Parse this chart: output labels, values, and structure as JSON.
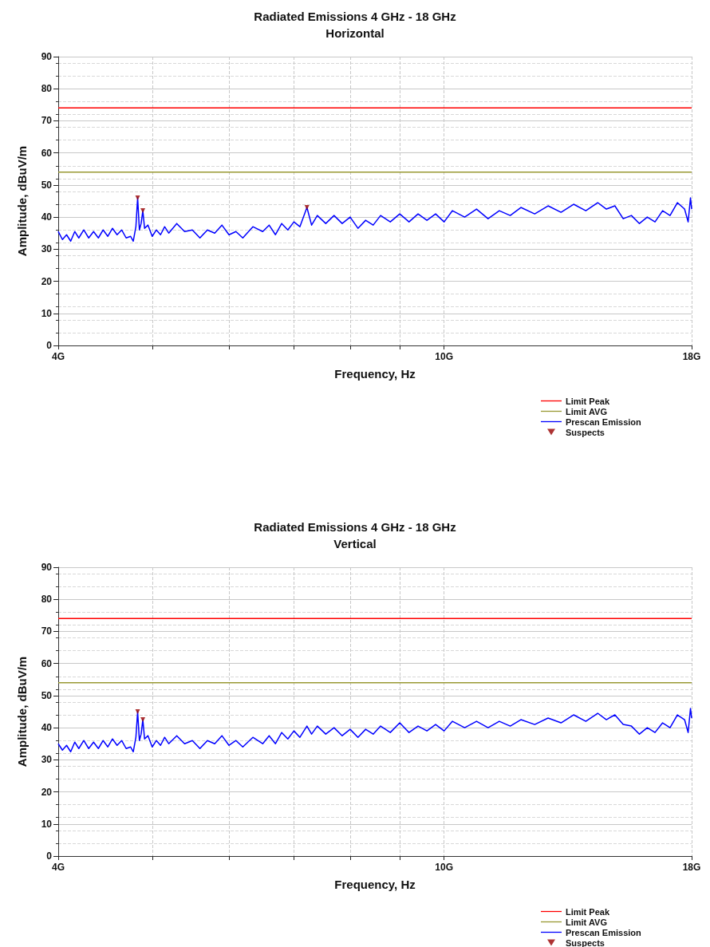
{
  "chart_data": [
    {
      "type": "line",
      "title": "Radiated Emissions 4 GHz - 18 GHz",
      "subtitle": "Horizontal",
      "xlabel": "Frequency, Hz",
      "ylabel": "Amplitude, dBuV/m",
      "log": "x",
      "xlim": [
        4,
        18
      ],
      "xticks": [
        {
          "value": 4,
          "label": "4G"
        },
        {
          "value": 5,
          "label": null
        },
        {
          "value": 6,
          "label": null
        },
        {
          "value": 7,
          "label": null
        },
        {
          "value": 8,
          "label": null
        },
        {
          "value": 9,
          "label": null
        },
        {
          "value": 10,
          "label": "10G"
        },
        {
          "value": 18,
          "label": "18G"
        }
      ],
      "ylim": [
        0,
        90
      ],
      "yticks": [
        0,
        10,
        20,
        30,
        40,
        50,
        60,
        70,
        80,
        90
      ],
      "grid": true,
      "legend": "bottom right",
      "series": [
        {
          "name": "Limit Peak",
          "color": "#ff0000",
          "x": [
            4,
            18
          ],
          "values": [
            74,
            74
          ]
        },
        {
          "name": "Limit AVG",
          "color": "#999933",
          "x": [
            4,
            18
          ],
          "values": [
            54,
            54
          ]
        },
        {
          "name": "Prescan Emission",
          "color": "#0000ff",
          "x": [
            4.0,
            4.04,
            4.08,
            4.12,
            4.16,
            4.2,
            4.25,
            4.3,
            4.35,
            4.4,
            4.45,
            4.5,
            4.55,
            4.6,
            4.65,
            4.7,
            4.75,
            4.78,
            4.81,
            4.83,
            4.85,
            4.87,
            4.89,
            4.91,
            4.95,
            5.0,
            5.05,
            5.1,
            5.15,
            5.2,
            5.3,
            5.4,
            5.5,
            5.6,
            5.7,
            5.8,
            5.9,
            6.0,
            6.1,
            6.2,
            6.35,
            6.5,
            6.6,
            6.7,
            6.8,
            6.9,
            7.0,
            7.1,
            7.22,
            7.3,
            7.4,
            7.55,
            7.7,
            7.85,
            8.0,
            8.15,
            8.3,
            8.45,
            8.6,
            8.8,
            9.0,
            9.2,
            9.4,
            9.6,
            9.8,
            10.0,
            10.2,
            10.5,
            10.8,
            11.1,
            11.4,
            11.7,
            12.0,
            12.4,
            12.8,
            13.2,
            13.6,
            14.0,
            14.4,
            14.7,
            15.0,
            15.3,
            15.6,
            15.9,
            16.2,
            16.5,
            16.8,
            17.1,
            17.4,
            17.7,
            17.85,
            17.95,
            18.0
          ],
          "values": [
            35.5,
            33,
            34.5,
            32.5,
            35.5,
            33.5,
            36,
            33.5,
            35.5,
            33.5,
            36,
            34,
            36.5,
            34.5,
            36,
            33.5,
            34,
            32.5,
            37,
            46,
            36,
            38,
            42,
            36.5,
            37.5,
            34,
            36,
            34.5,
            37,
            35,
            38,
            35.5,
            36,
            33.5,
            36,
            35,
            37.5,
            34.5,
            35.5,
            33.5,
            37,
            35.5,
            37.5,
            34.5,
            38,
            36,
            38.5,
            37,
            43,
            37.5,
            40.5,
            38,
            40.5,
            38,
            40,
            36.5,
            39,
            37.5,
            40.5,
            38.5,
            41,
            38.5,
            41,
            39,
            41,
            38.5,
            42,
            40,
            42.5,
            39.5,
            42,
            40.5,
            43,
            41,
            43.5,
            41.5,
            44,
            42,
            44.5,
            42.5,
            43.5,
            39.5,
            40.5,
            38,
            40,
            38.5,
            42,
            40.5,
            44.5,
            42.5,
            38.5,
            46,
            42.5
          ]
        },
        {
          "name": "Suspects",
          "type": "scatter",
          "marker": "triangle",
          "color": "#990000",
          "x": [
            4.83,
            4.89,
            7.22
          ],
          "values": [
            46,
            42,
            43
          ]
        }
      ]
    },
    {
      "type": "line",
      "title": "Radiated Emissions 4 GHz - 18 GHz",
      "subtitle": "Vertical",
      "xlabel": "Frequency, Hz",
      "ylabel": "Amplitude, dBuV/m",
      "log": "x",
      "xlim": [
        4,
        18
      ],
      "xticks": [
        {
          "value": 4,
          "label": "4G"
        },
        {
          "value": 5,
          "label": null
        },
        {
          "value": 6,
          "label": null
        },
        {
          "value": 7,
          "label": null
        },
        {
          "value": 8,
          "label": null
        },
        {
          "value": 9,
          "label": null
        },
        {
          "value": 10,
          "label": "10G"
        },
        {
          "value": 18,
          "label": "18G"
        }
      ],
      "ylim": [
        0,
        90
      ],
      "yticks": [
        0,
        10,
        20,
        30,
        40,
        50,
        60,
        70,
        80,
        90
      ],
      "grid": true,
      "legend": "bottom right",
      "series": [
        {
          "name": "Limit Peak",
          "color": "#ff0000",
          "x": [
            4,
            18
          ],
          "values": [
            74,
            74
          ]
        },
        {
          "name": "Limit AVG",
          "color": "#999933",
          "x": [
            4,
            18
          ],
          "values": [
            54,
            54
          ]
        },
        {
          "name": "Prescan Emission",
          "color": "#0000ff",
          "x": [
            4.0,
            4.04,
            4.08,
            4.12,
            4.16,
            4.2,
            4.25,
            4.3,
            4.35,
            4.4,
            4.45,
            4.5,
            4.55,
            4.6,
            4.65,
            4.7,
            4.75,
            4.78,
            4.81,
            4.83,
            4.85,
            4.87,
            4.89,
            4.91,
            4.95,
            5.0,
            5.05,
            5.1,
            5.15,
            5.2,
            5.3,
            5.4,
            5.5,
            5.6,
            5.7,
            5.8,
            5.9,
            6.0,
            6.1,
            6.2,
            6.35,
            6.5,
            6.6,
            6.7,
            6.8,
            6.9,
            7.0,
            7.1,
            7.22,
            7.3,
            7.4,
            7.55,
            7.7,
            7.85,
            8.0,
            8.15,
            8.3,
            8.45,
            8.6,
            8.8,
            9.0,
            9.2,
            9.4,
            9.6,
            9.8,
            10.0,
            10.2,
            10.5,
            10.8,
            11.1,
            11.4,
            11.7,
            12.0,
            12.4,
            12.8,
            13.2,
            13.6,
            14.0,
            14.4,
            14.7,
            15.0,
            15.3,
            15.6,
            15.9,
            16.2,
            16.5,
            16.8,
            17.1,
            17.4,
            17.7,
            17.85,
            17.95,
            18.0
          ],
          "values": [
            35,
            33,
            34.5,
            32.5,
            35.5,
            33.5,
            36,
            33.5,
            35.5,
            33.5,
            36,
            34,
            36.5,
            34.5,
            36,
            33.5,
            34,
            32.5,
            37,
            45,
            36,
            38,
            42.5,
            36.5,
            37.5,
            34,
            36,
            34.5,
            37,
            35,
            37.5,
            35,
            36,
            33.5,
            36,
            35,
            37.5,
            34.5,
            36,
            34,
            37,
            35,
            37.5,
            35,
            38.5,
            36.5,
            39,
            37,
            40.5,
            38,
            40.5,
            38,
            40,
            37.5,
            39.5,
            37,
            39.5,
            38,
            40.5,
            38.5,
            41.5,
            38.5,
            40.5,
            39,
            41,
            39,
            42,
            40,
            42,
            40,
            42,
            40.5,
            42.5,
            41,
            43,
            41.5,
            44,
            42,
            44.5,
            42.5,
            44,
            41,
            40.5,
            38,
            40,
            38.5,
            41.5,
            40,
            44,
            42.5,
            38.5,
            46,
            43
          ]
        },
        {
          "name": "Suspects",
          "type": "scatter",
          "marker": "triangle",
          "color": "#990000",
          "x": [
            4.83,
            4.89
          ],
          "values": [
            45,
            42.5
          ]
        }
      ]
    }
  ]
}
